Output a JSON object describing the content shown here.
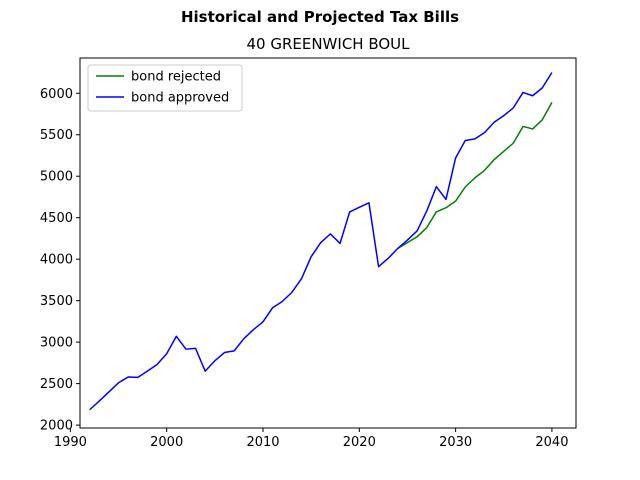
{
  "chart_data": {
    "type": "line",
    "suptitle": "Historical and Projected Tax Bills",
    "title": "40 GREENWICH BOUL",
    "xlabel": "",
    "ylabel": "",
    "xlim": [
      1991,
      2042.5
    ],
    "ylim": [
      1965,
      6425
    ],
    "x_ticks": [
      1990,
      2000,
      2010,
      2020,
      2030,
      2040
    ],
    "y_ticks": [
      2000,
      2500,
      3000,
      3500,
      4000,
      4500,
      5000,
      5500,
      6000
    ],
    "grid": false,
    "legend_position": "upper-left",
    "series": [
      {
        "name": "bond rejected",
        "color": "#008000",
        "x": [
          2024,
          2025,
          2026,
          2027,
          2028,
          2029,
          2030,
          2031,
          2032,
          2033,
          2034,
          2035,
          2036,
          2037,
          2038,
          2039,
          2040
        ],
        "values": [
          4130,
          4200,
          4270,
          4380,
          4570,
          4620,
          4700,
          4870,
          4980,
          5070,
          5200,
          5300,
          5400,
          5600,
          5570,
          5680,
          5890
        ]
      },
      {
        "name": "bond approved",
        "color": "#0000ff",
        "x": [
          1992,
          1993,
          1994,
          1995,
          1996,
          1997,
          1998,
          1999,
          2000,
          2001,
          2002,
          2003,
          2004,
          2005,
          2006,
          2007,
          2008,
          2009,
          2010,
          2011,
          2012,
          2013,
          2014,
          2015,
          2016,
          2017,
          2018,
          2019,
          2020,
          2021,
          2022,
          2023,
          2024,
          2025,
          2026,
          2027,
          2028,
          2029,
          2030,
          2031,
          2032,
          2033,
          2034,
          2035,
          2036,
          2037,
          2038,
          2039,
          2040
        ],
        "values": [
          2185,
          2290,
          2400,
          2510,
          2580,
          2575,
          2650,
          2730,
          2860,
          3070,
          2915,
          2925,
          2650,
          2775,
          2875,
          2895,
          3040,
          3150,
          3245,
          3415,
          3490,
          3600,
          3765,
          4030,
          4200,
          4305,
          4190,
          4570,
          4625,
          4680,
          3910,
          4010,
          4130,
          4230,
          4340,
          4580,
          4875,
          4720,
          5220,
          5430,
          5450,
          5525,
          5650,
          5730,
          5825,
          6010,
          5970,
          6065,
          6250
        ]
      }
    ]
  }
}
